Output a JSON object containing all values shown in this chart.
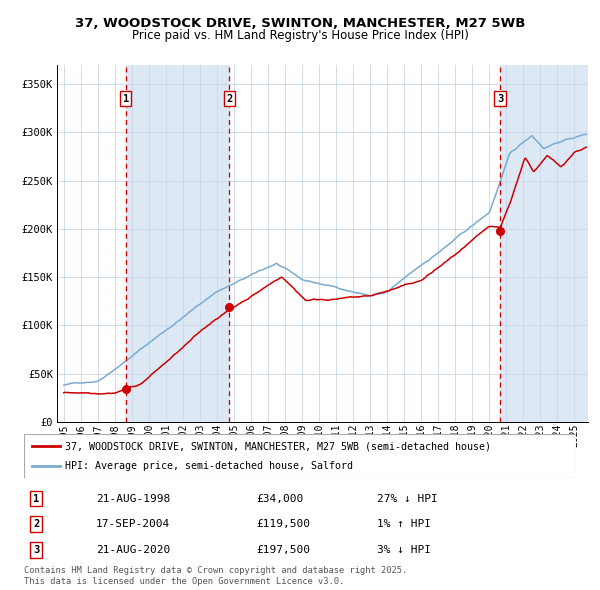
{
  "title_line1": "37, WOODSTOCK DRIVE, SWINTON, MANCHESTER, M27 5WB",
  "title_line2": "Price paid vs. HM Land Registry's House Price Index (HPI)",
  "ylabel_ticks": [
    "£0",
    "£50K",
    "£100K",
    "£150K",
    "£200K",
    "£250K",
    "£300K",
    "£350K"
  ],
  "ytick_values": [
    0,
    50000,
    100000,
    150000,
    200000,
    250000,
    300000,
    350000
  ],
  "ylim": [
    0,
    370000
  ],
  "xlim_start": 1994.6,
  "xlim_end": 2025.8,
  "sale_dates": [
    1998.64,
    2004.72,
    2020.64
  ],
  "sale_prices": [
    34000,
    119500,
    197500
  ],
  "sale_labels": [
    "1",
    "2",
    "3"
  ],
  "sale_info": [
    {
      "num": "1",
      "date": "21-AUG-1998",
      "price": "£34,000",
      "hpi": "27% ↓ HPI"
    },
    {
      "num": "2",
      "date": "17-SEP-2004",
      "price": "£119,500",
      "hpi": "1% ↑ HPI"
    },
    {
      "num": "3",
      "date": "21-AUG-2020",
      "price": "£197,500",
      "hpi": "3% ↓ HPI"
    }
  ],
  "legend_line1": "37, WOODSTOCK DRIVE, SWINTON, MANCHESTER, M27 5WB (semi-detached house)",
  "legend_line2": "HPI: Average price, semi-detached house, Salford",
  "red_color": "#cc0000",
  "blue_color": "#7aabcf",
  "bg_shade_color": "#dce9f5",
  "grid_color": "#c8d8e8",
  "title_fontsize": 9.5,
  "subtitle_fontsize": 8.5,
  "axis_fontsize": 7.5,
  "footer_text": "Contains HM Land Registry data © Crown copyright and database right 2025.\nThis data is licensed under the Open Government Licence v3.0."
}
